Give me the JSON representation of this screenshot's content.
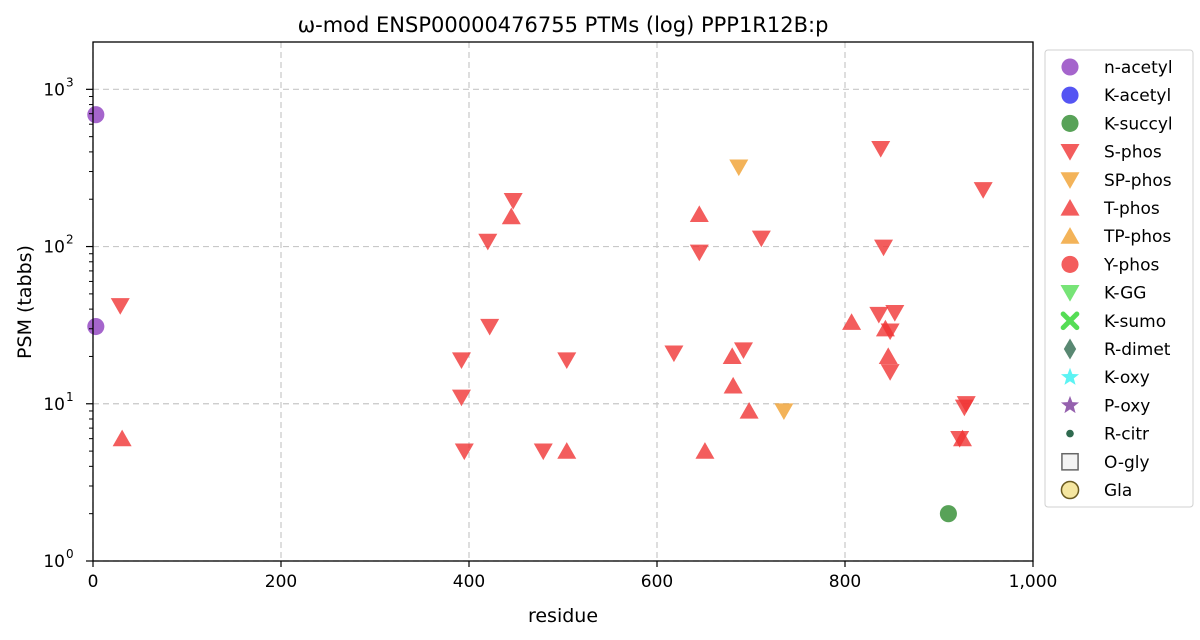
{
  "chart_data": {
    "type": "scatter",
    "title": "ω-mod ENSP00000476755 PTMs (log) PPP1R12B:p",
    "xlabel": "residue",
    "ylabel": "PSM (tabbs)",
    "xlim": [
      0,
      1000
    ],
    "ylim": [
      1,
      2000
    ],
    "yscale": "log",
    "grid": true,
    "legend_position": "right, outside",
    "x_ticks": [
      0,
      200,
      400,
      600,
      800,
      1000
    ],
    "x_tick_labels": [
      "0",
      "200",
      "400",
      "600",
      "800",
      "1,000"
    ],
    "y_ticks": [
      1,
      10,
      100,
      1000
    ],
    "y_tick_labels": [
      "10",
      "10",
      "10",
      "10"
    ],
    "y_tick_exponents": [
      "0",
      "1",
      "2",
      "3"
    ],
    "series": [
      {
        "name": "n-acetyl",
        "marker": "circle",
        "color": "#8f3fbf",
        "points": [
          [
            3,
            690
          ],
          [
            3,
            31
          ]
        ]
      },
      {
        "name": "K-acetyl",
        "marker": "circle",
        "color": "#2a2af0",
        "points": []
      },
      {
        "name": "K-succyl",
        "marker": "circle",
        "color": "#2e8b2e",
        "points": [
          [
            910,
            2
          ]
        ]
      },
      {
        "name": "S-phos",
        "marker": "triangle-down",
        "color": "#f03434",
        "points": [
          [
            29,
            42
          ],
          [
            392,
            19
          ],
          [
            392,
            11
          ],
          [
            395,
            5
          ],
          [
            420,
            108
          ],
          [
            422,
            31
          ],
          [
            447,
            196
          ],
          [
            479,
            5
          ],
          [
            504,
            19
          ],
          [
            618,
            21
          ],
          [
            645,
            92
          ],
          [
            692,
            22
          ],
          [
            711,
            113
          ],
          [
            836,
            37
          ],
          [
            838,
            420
          ],
          [
            841,
            99
          ],
          [
            848,
            29
          ],
          [
            848,
            16
          ],
          [
            853,
            38
          ],
          [
            922,
            6
          ],
          [
            927,
            9.5
          ],
          [
            929,
            10
          ],
          [
            947,
            230
          ]
        ]
      },
      {
        "name": "SP-phos",
        "marker": "triangle-down",
        "color": "#f0a030",
        "points": [
          [
            687,
            320
          ],
          [
            735,
            9
          ]
        ]
      },
      {
        "name": "T-phos",
        "marker": "triangle-up",
        "color": "#f03434",
        "points": [
          [
            31,
            6
          ],
          [
            445,
            155
          ],
          [
            504,
            5
          ],
          [
            645,
            160
          ],
          [
            651,
            5
          ],
          [
            680,
            20
          ],
          [
            681,
            13
          ],
          [
            698,
            9
          ],
          [
            807,
            33
          ],
          [
            843,
            30
          ],
          [
            846,
            20
          ],
          [
            925,
            6
          ]
        ]
      },
      {
        "name": "TP-phos",
        "marker": "triangle-up",
        "color": "#f0a030",
        "points": []
      },
      {
        "name": "Y-phos",
        "marker": "circle",
        "color": "#f03434",
        "points": []
      },
      {
        "name": "K-GG",
        "marker": "triangle-down",
        "color": "#55dd55",
        "points": []
      },
      {
        "name": "K-sumo",
        "marker": "x",
        "color": "#55dd55",
        "points": []
      },
      {
        "name": "R-dimet",
        "marker": "diamond",
        "color": "#2f6a4f",
        "points": []
      },
      {
        "name": "K-oxy",
        "marker": "star",
        "color": "#33f0f0",
        "points": []
      },
      {
        "name": "P-oxy",
        "marker": "star",
        "color": "#7a3a9a",
        "points": []
      },
      {
        "name": "R-citr",
        "marker": "small-circle",
        "color": "#2f6a4f",
        "points": []
      },
      {
        "name": "O-gly",
        "marker": "square-open",
        "color": "#666666",
        "points": []
      },
      {
        "name": "Gla",
        "marker": "circle-open",
        "color": "#f5e6a0",
        "points": []
      }
    ]
  }
}
